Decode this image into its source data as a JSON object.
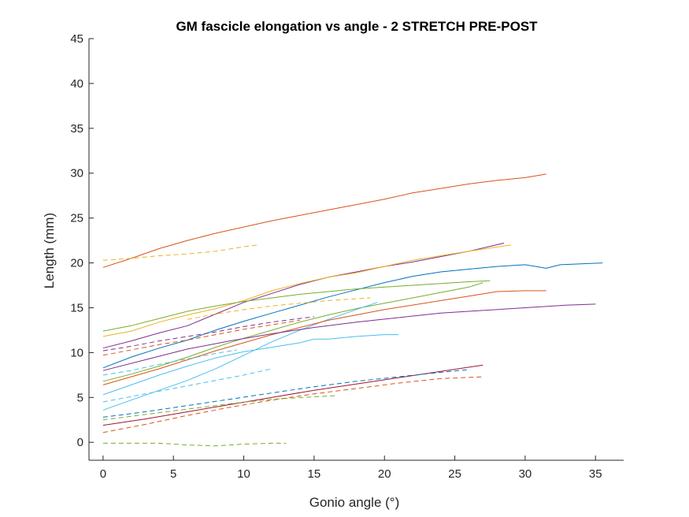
{
  "chart_data": {
    "type": "line",
    "title": "GM fascicle elongation vs angle - 2 STRETCH PRE-POST",
    "xlabel": "Gonio angle (°)",
    "ylabel": "Length (mm)",
    "xlim": [
      -1,
      37
    ],
    "ylim": [
      -2,
      45
    ],
    "xticks": [
      0,
      5,
      10,
      15,
      20,
      25,
      30,
      35
    ],
    "yticks": [
      0,
      5,
      10,
      15,
      20,
      25,
      30,
      35,
      40,
      45
    ],
    "grid": false,
    "series": [
      {
        "color": "#D95319",
        "style": "solid",
        "x": [
          0,
          2,
          4,
          6,
          8,
          10,
          12,
          14,
          16,
          18,
          20,
          22,
          24,
          26,
          28,
          30,
          31.5
        ],
        "y": [
          19.5,
          20.5,
          21.6,
          22.5,
          23.3,
          24.0,
          24.7,
          25.3,
          25.9,
          26.5,
          27.1,
          27.8,
          28.3,
          28.8,
          29.2,
          29.5,
          29.9
        ]
      },
      {
        "color": "#EDB120",
        "style": "dashed",
        "x": [
          0,
          2,
          4,
          6,
          8,
          10,
          11
        ],
        "y": [
          20.3,
          20.5,
          20.8,
          21.0,
          21.3,
          21.8,
          22.0
        ]
      },
      {
        "color": "#7E2F8E",
        "style": "solid",
        "x": [
          0,
          2,
          4,
          6,
          8,
          10,
          12,
          14,
          16,
          18,
          20,
          22,
          24,
          26,
          28.5
        ],
        "y": [
          10.5,
          11.3,
          12.2,
          13.0,
          14.3,
          15.6,
          16.6,
          17.6,
          18.4,
          19.0,
          19.6,
          20.1,
          20.7,
          21.3,
          22.2
        ]
      },
      {
        "color": "#EDB120",
        "style": "solid",
        "x": [
          0,
          2,
          4,
          6,
          8,
          10,
          12,
          14,
          16,
          18,
          20,
          22,
          24,
          26,
          29
        ],
        "y": [
          11.8,
          12.4,
          13.4,
          14.2,
          14.9,
          15.8,
          16.9,
          17.7,
          18.4,
          18.9,
          19.6,
          20.3,
          20.8,
          21.3,
          22.0
        ]
      },
      {
        "color": "#0072BD",
        "style": "solid",
        "x": [
          0,
          2,
          4,
          6,
          8,
          10,
          12,
          14,
          16,
          18,
          20,
          22,
          24,
          26,
          28,
          30,
          31.5,
          32.5,
          34,
          35.5
        ],
        "y": [
          8.3,
          9.5,
          10.5,
          11.4,
          12.5,
          13.5,
          14.4,
          15.3,
          16.2,
          17.0,
          17.8,
          18.5,
          19.0,
          19.3,
          19.6,
          19.8,
          19.4,
          19.8,
          19.9,
          20.0
        ]
      },
      {
        "color": "#77AC30",
        "style": "solid",
        "x": [
          0,
          2,
          4,
          6,
          8,
          10,
          12,
          14,
          16,
          18,
          20,
          22,
          24,
          26,
          27.5
        ],
        "y": [
          12.4,
          13.0,
          13.8,
          14.6,
          15.2,
          15.7,
          16.1,
          16.5,
          16.8,
          17.1,
          17.3,
          17.5,
          17.7,
          17.9,
          18.0
        ]
      },
      {
        "color": "#77AC30",
        "style": "solid",
        "x": [
          0,
          2,
          4,
          6,
          8,
          10,
          12,
          14,
          16,
          18,
          20,
          22,
          24,
          26,
          27
        ],
        "y": [
          6.8,
          7.6,
          8.5,
          9.5,
          10.6,
          11.6,
          12.5,
          13.4,
          14.2,
          14.9,
          15.5,
          16.1,
          16.7,
          17.3,
          17.8
        ]
      },
      {
        "color": "#4DBEEE",
        "style": "solid",
        "x": [
          0,
          2,
          4,
          6,
          8,
          10,
          12,
          14,
          16,
          18,
          19.5
        ],
        "y": [
          3.6,
          4.7,
          5.8,
          6.9,
          8.2,
          9.7,
          11.2,
          12.5,
          13.7,
          14.8,
          15.6
        ]
      },
      {
        "color": "#D95319",
        "style": "solid",
        "x": [
          0,
          2,
          4,
          6,
          8,
          10,
          12,
          14,
          16,
          18,
          20,
          22,
          24,
          26,
          28,
          30,
          31.5
        ],
        "y": [
          6.4,
          7.3,
          8.2,
          9.2,
          10.2,
          11.1,
          12.0,
          12.8,
          13.6,
          14.2,
          14.8,
          15.3,
          15.8,
          16.3,
          16.8,
          16.9,
          16.9
        ]
      },
      {
        "color": "#7E2F8E",
        "style": "solid",
        "x": [
          0,
          3,
          6,
          9,
          12,
          15,
          18,
          21,
          24,
          27,
          30,
          33,
          35
        ],
        "y": [
          8.0,
          9.2,
          10.4,
          11.3,
          12.1,
          12.8,
          13.4,
          13.9,
          14.4,
          14.7,
          15.0,
          15.3,
          15.4
        ]
      },
      {
        "color": "#4DBEEE",
        "style": "solid",
        "x": [
          0,
          2,
          4,
          6,
          8,
          10,
          12,
          14,
          15,
          16,
          18,
          20,
          21
        ],
        "y": [
          5.3,
          6.4,
          7.5,
          8.5,
          9.4,
          10.1,
          10.6,
          11.1,
          11.5,
          11.5,
          11.8,
          12.0,
          12.0
        ]
      },
      {
        "color": "#7E2F8E",
        "style": "dashed",
        "x": [
          0,
          2,
          4,
          6,
          8,
          10,
          12,
          14,
          15
        ],
        "y": [
          10.2,
          10.7,
          11.3,
          11.8,
          12.3,
          12.9,
          13.4,
          13.8,
          14.0
        ]
      },
      {
        "color": "#D95319",
        "style": "dashed",
        "x": [
          0,
          2,
          4,
          6,
          8,
          10,
          12,
          14
        ],
        "y": [
          9.7,
          10.3,
          10.9,
          11.4,
          12.0,
          12.6,
          13.1,
          13.6
        ]
      },
      {
        "color": "#EDB120",
        "style": "dashed",
        "x": [
          6,
          8,
          10,
          12,
          14,
          16,
          18,
          19
        ],
        "y": [
          13.7,
          14.3,
          14.8,
          15.2,
          15.5,
          15.8,
          16.0,
          16.1
        ]
      },
      {
        "color": "#4DBEEE",
        "style": "dashed",
        "x": [
          0,
          2,
          4,
          6,
          8,
          10,
          12
        ],
        "y": [
          4.5,
          5.1,
          5.7,
          6.3,
          6.9,
          7.5,
          8.2
        ]
      },
      {
        "color": "#4DBEEE",
        "style": "dashed",
        "x": [
          0,
          2,
          4,
          6,
          8,
          9.5
        ],
        "y": [
          7.5,
          8.0,
          8.7,
          9.3,
          9.9,
          10.3
        ]
      },
      {
        "color": "#A2142F",
        "style": "solid",
        "x": [
          0,
          3,
          6,
          9,
          12,
          15,
          18,
          21,
          24,
          27
        ],
        "y": [
          1.9,
          2.6,
          3.4,
          4.2,
          5.0,
          5.8,
          6.5,
          7.2,
          7.9,
          8.6
        ]
      },
      {
        "color": "#0072BD",
        "style": "dashed",
        "x": [
          0,
          3,
          6,
          9,
          12,
          15,
          18,
          21,
          24,
          26
        ],
        "y": [
          2.8,
          3.4,
          4.1,
          4.8,
          5.5,
          6.2,
          6.8,
          7.3,
          7.8,
          8.1
        ]
      },
      {
        "color": "#D95319",
        "style": "dashed",
        "x": [
          0,
          3,
          6,
          9,
          12,
          15,
          18,
          21,
          24,
          27
        ],
        "y": [
          1.1,
          2.0,
          3.0,
          3.9,
          4.7,
          5.4,
          6.0,
          6.6,
          7.1,
          7.3
        ]
      },
      {
        "color": "#77AC30",
        "style": "dashed",
        "x": [
          0,
          3,
          6,
          9,
          12,
          16.5
        ],
        "y": [
          2.5,
          3.1,
          3.7,
          4.3,
          4.8,
          5.2
        ]
      },
      {
        "color": "#77AC30",
        "style": "dashed",
        "x": [
          0,
          2,
          4,
          6,
          8,
          10,
          12,
          13
        ],
        "y": [
          -0.1,
          -0.1,
          -0.1,
          -0.3,
          -0.4,
          -0.2,
          -0.1,
          -0.1
        ]
      }
    ]
  }
}
